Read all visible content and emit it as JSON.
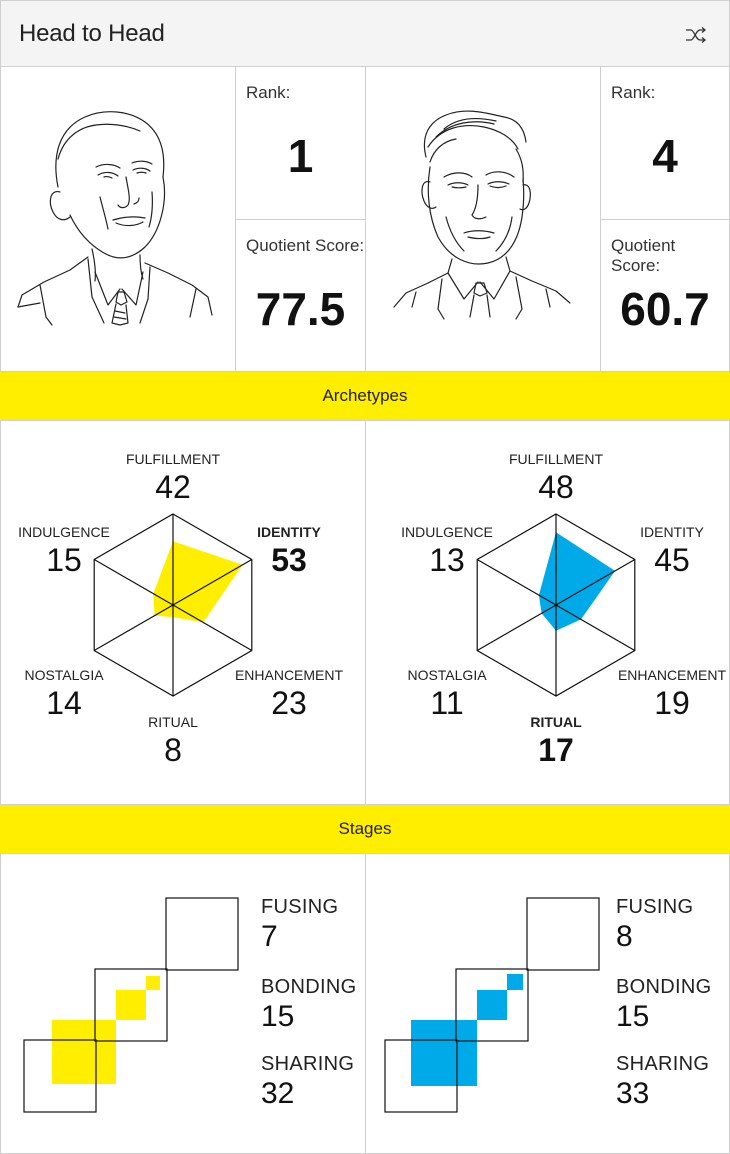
{
  "header": {
    "title": "Head to Head",
    "shuffle_icon": "shuffle-icon"
  },
  "left": {
    "rank_label": "Rank:",
    "rank": "1",
    "score_label": "Quotient Score:",
    "score": "77.5",
    "color": "#ffee00",
    "archetypes": [
      {
        "label": "FULFILLMENT",
        "value": 42,
        "highlight": false
      },
      {
        "label": "IDENTITY",
        "value": 53,
        "highlight": true
      },
      {
        "label": "ENHANCEMENT",
        "value": 23,
        "highlight": false
      },
      {
        "label": "RITUAL",
        "value": 8,
        "highlight": false
      },
      {
        "label": "NOSTALGIA",
        "value": 14,
        "highlight": false
      },
      {
        "label": "INDULGENCE",
        "value": 15,
        "highlight": false
      }
    ],
    "stages": [
      {
        "label": "FUSING",
        "value": 7
      },
      {
        "label": "BONDING",
        "value": 15
      },
      {
        "label": "SHARING",
        "value": 32
      }
    ]
  },
  "right": {
    "rank_label": "Rank:",
    "rank": "4",
    "score_label": "Quotient Score:",
    "score": "60.7",
    "color": "#00a9e8",
    "archetypes": [
      {
        "label": "FULFILLMENT",
        "value": 48,
        "highlight": false
      },
      {
        "label": "IDENTITY",
        "value": 45,
        "highlight": false
      },
      {
        "label": "ENHANCEMENT",
        "value": 19,
        "highlight": false
      },
      {
        "label": "RITUAL",
        "value": 17,
        "highlight": true
      },
      {
        "label": "NOSTALGIA",
        "value": 11,
        "highlight": false
      },
      {
        "label": "INDULGENCE",
        "value": 13,
        "highlight": false
      }
    ],
    "stages": [
      {
        "label": "FUSING",
        "value": 8
      },
      {
        "label": "BONDING",
        "value": 15
      },
      {
        "label": "SHARING",
        "value": 33
      }
    ]
  },
  "bands": {
    "archetypes": "Archetypes",
    "stages": "Stages"
  },
  "chart_data": [
    {
      "type": "radar",
      "categories": [
        "FULFILLMENT",
        "IDENTITY",
        "ENHANCEMENT",
        "RITUAL",
        "NOSTALGIA",
        "INDULGENCE"
      ],
      "series": [
        {
          "values": [
            42,
            53,
            23,
            8,
            14,
            15
          ]
        }
      ]
    },
    {
      "type": "radar",
      "categories": [
        "FULFILLMENT",
        "IDENTITY",
        "ENHANCEMENT",
        "RITUAL",
        "NOSTALGIA",
        "INDULGENCE"
      ],
      "series": [
        {
          "values": [
            48,
            45,
            19,
            17,
            11,
            13
          ]
        }
      ]
    }
  ]
}
